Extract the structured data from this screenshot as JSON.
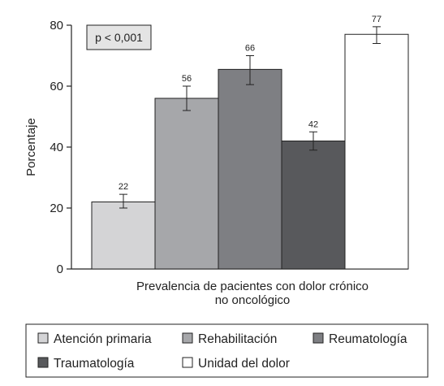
{
  "chart_data": {
    "type": "bar",
    "ylabel": "Porcentaje",
    "xlabel_lines": [
      "Prevalencia de pacientes con dolor crónico",
      "no oncológico"
    ],
    "ylim": [
      0,
      80
    ],
    "yticks": [
      0,
      20,
      40,
      60,
      80
    ],
    "annotation": "p < 0,001",
    "series": [
      {
        "name": "Atención primaria",
        "value": 22,
        "label": "22",
        "error": [
          20,
          24.5
        ],
        "color": "#d4d4d6"
      },
      {
        "name": "Rehabilitación",
        "value": 56,
        "label": "56",
        "error": [
          52,
          60
        ],
        "color": "#a6a7aa"
      },
      {
        "name": "Reumatología",
        "value": 65.5,
        "label": "66",
        "error": [
          60.5,
          70
        ],
        "color": "#7e7f83"
      },
      {
        "name": "Traumatología",
        "value": 42,
        "label": "42",
        "error": [
          39,
          45
        ],
        "color": "#58595c"
      },
      {
        "name": "Unidad del dolor",
        "value": 77,
        "label": "77",
        "error": [
          74,
          79.5
        ],
        "color": "#ffffff"
      }
    ],
    "legend": {
      "placement": "bottom",
      "frame": true
    },
    "grid": false
  }
}
